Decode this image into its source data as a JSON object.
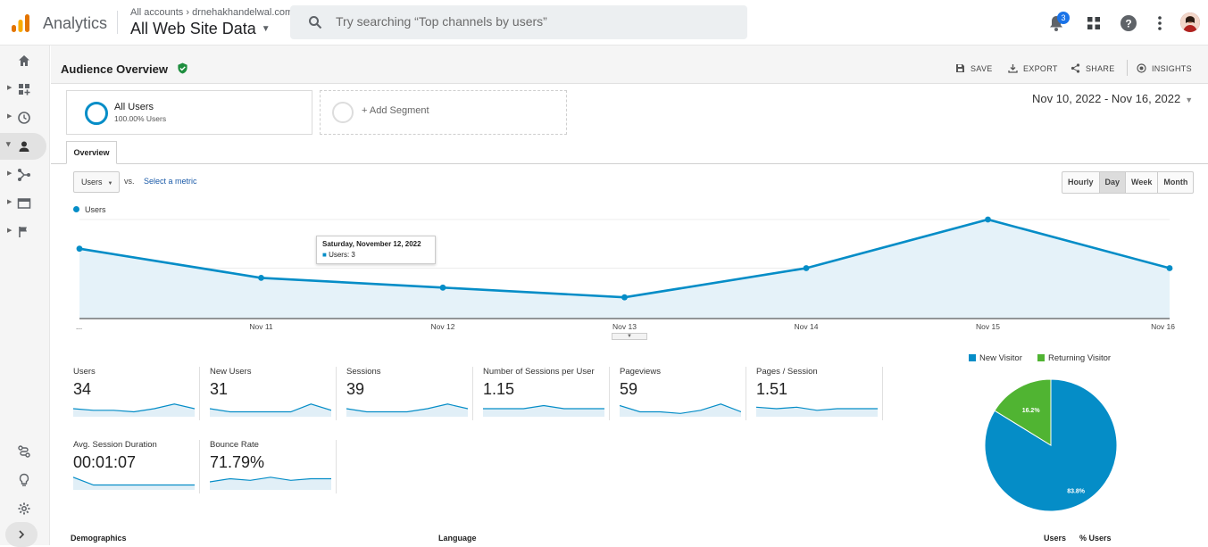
{
  "topbar": {
    "app_name": "Analytics",
    "account_path": "All accounts › drnehakhandelwal.com",
    "property_name": "All Web Site Data",
    "search_placeholder": "Try searching “Top channels by users”",
    "notification_count": "3"
  },
  "sidebar": {
    "icons": [
      "home-icon",
      "dashboard-icon",
      "clock-icon",
      "person-icon",
      "acquisition-icon",
      "behavior-icon",
      "flag-icon",
      "attribution-icon",
      "lightbulb-icon",
      "gear-icon",
      "expand-icon"
    ],
    "active": "person-icon"
  },
  "page": {
    "title": "Audience Overview",
    "actions": {
      "save": "SAVE",
      "export": "EXPORT",
      "share": "SHARE",
      "insights": "INSIGHTS"
    },
    "segment": {
      "name": "All Users",
      "sub": "100.00% Users",
      "add": "+ Add Segment"
    },
    "date_range": "Nov 10, 2022 - Nov 16, 2022",
    "tab": "Overview",
    "metric_select": "Users",
    "vs": "vs.",
    "select_metric": "Select a metric",
    "granularity": [
      "Hourly",
      "Day",
      "Week",
      "Month"
    ],
    "granularity_active": "Day"
  },
  "chart_data": {
    "type": "line",
    "title": "",
    "x": [
      "...",
      "Nov 11",
      "Nov 12",
      "Nov 13",
      "Nov 14",
      "Nov 15",
      "Nov 16"
    ],
    "series": [
      {
        "name": "Users",
        "values": [
          7,
          4,
          3,
          2,
          5,
          10,
          5
        ]
      }
    ],
    "ylim": [
      0,
      10
    ],
    "yticks": [
      "10",
      "5"
    ],
    "grid": true,
    "legend": "top-left",
    "color": "#058dc7",
    "tooltip": {
      "title": "Saturday, November 12, 2022",
      "value": "Users: 3"
    }
  },
  "metrics": [
    {
      "label": "Users",
      "value": "34",
      "spark": [
        4,
        3,
        3,
        2,
        4,
        7,
        4
      ]
    },
    {
      "label": "New Users",
      "value": "31",
      "spark": [
        4,
        2,
        2,
        2,
        2,
        7,
        3
      ]
    },
    {
      "label": "Sessions",
      "value": "39",
      "spark": [
        4,
        2,
        2,
        2,
        4,
        7,
        4
      ]
    },
    {
      "label": "Number of Sessions per User",
      "value": "1.15",
      "spark": [
        4,
        4,
        4,
        6,
        4,
        4,
        4
      ]
    },
    {
      "label": "Pageviews",
      "value": "59",
      "spark": [
        6,
        2,
        2,
        1,
        3,
        7,
        2
      ]
    },
    {
      "label": "Pages / Session",
      "value": "1.51",
      "spark": [
        5,
        4,
        5,
        3,
        4,
        4,
        4
      ]
    },
    {
      "label": "Avg. Session Duration",
      "value": "00:01:07",
      "spark": [
        7,
        2,
        2,
        2,
        2,
        2,
        2
      ]
    },
    {
      "label": "Bounce Rate",
      "value": "71.79%",
      "spark": [
        4,
        6,
        5,
        7,
        5,
        6,
        6
      ]
    }
  ],
  "pie": {
    "legend": [
      {
        "name": "New Visitor",
        "color": "#058dc7"
      },
      {
        "name": "Returning Visitor",
        "color": "#50b432"
      }
    ],
    "slices": [
      {
        "name": "New Visitor",
        "value": 83.8,
        "label": "83.8%",
        "color": "#058dc7"
      },
      {
        "name": "Returning Visitor",
        "value": 16.2,
        "label": "16.2%",
        "color": "#50b432"
      }
    ]
  },
  "bottom": {
    "demographics": "Demographics",
    "language": "Language",
    "col_users": "Users",
    "col_pct_users": "% Users"
  }
}
